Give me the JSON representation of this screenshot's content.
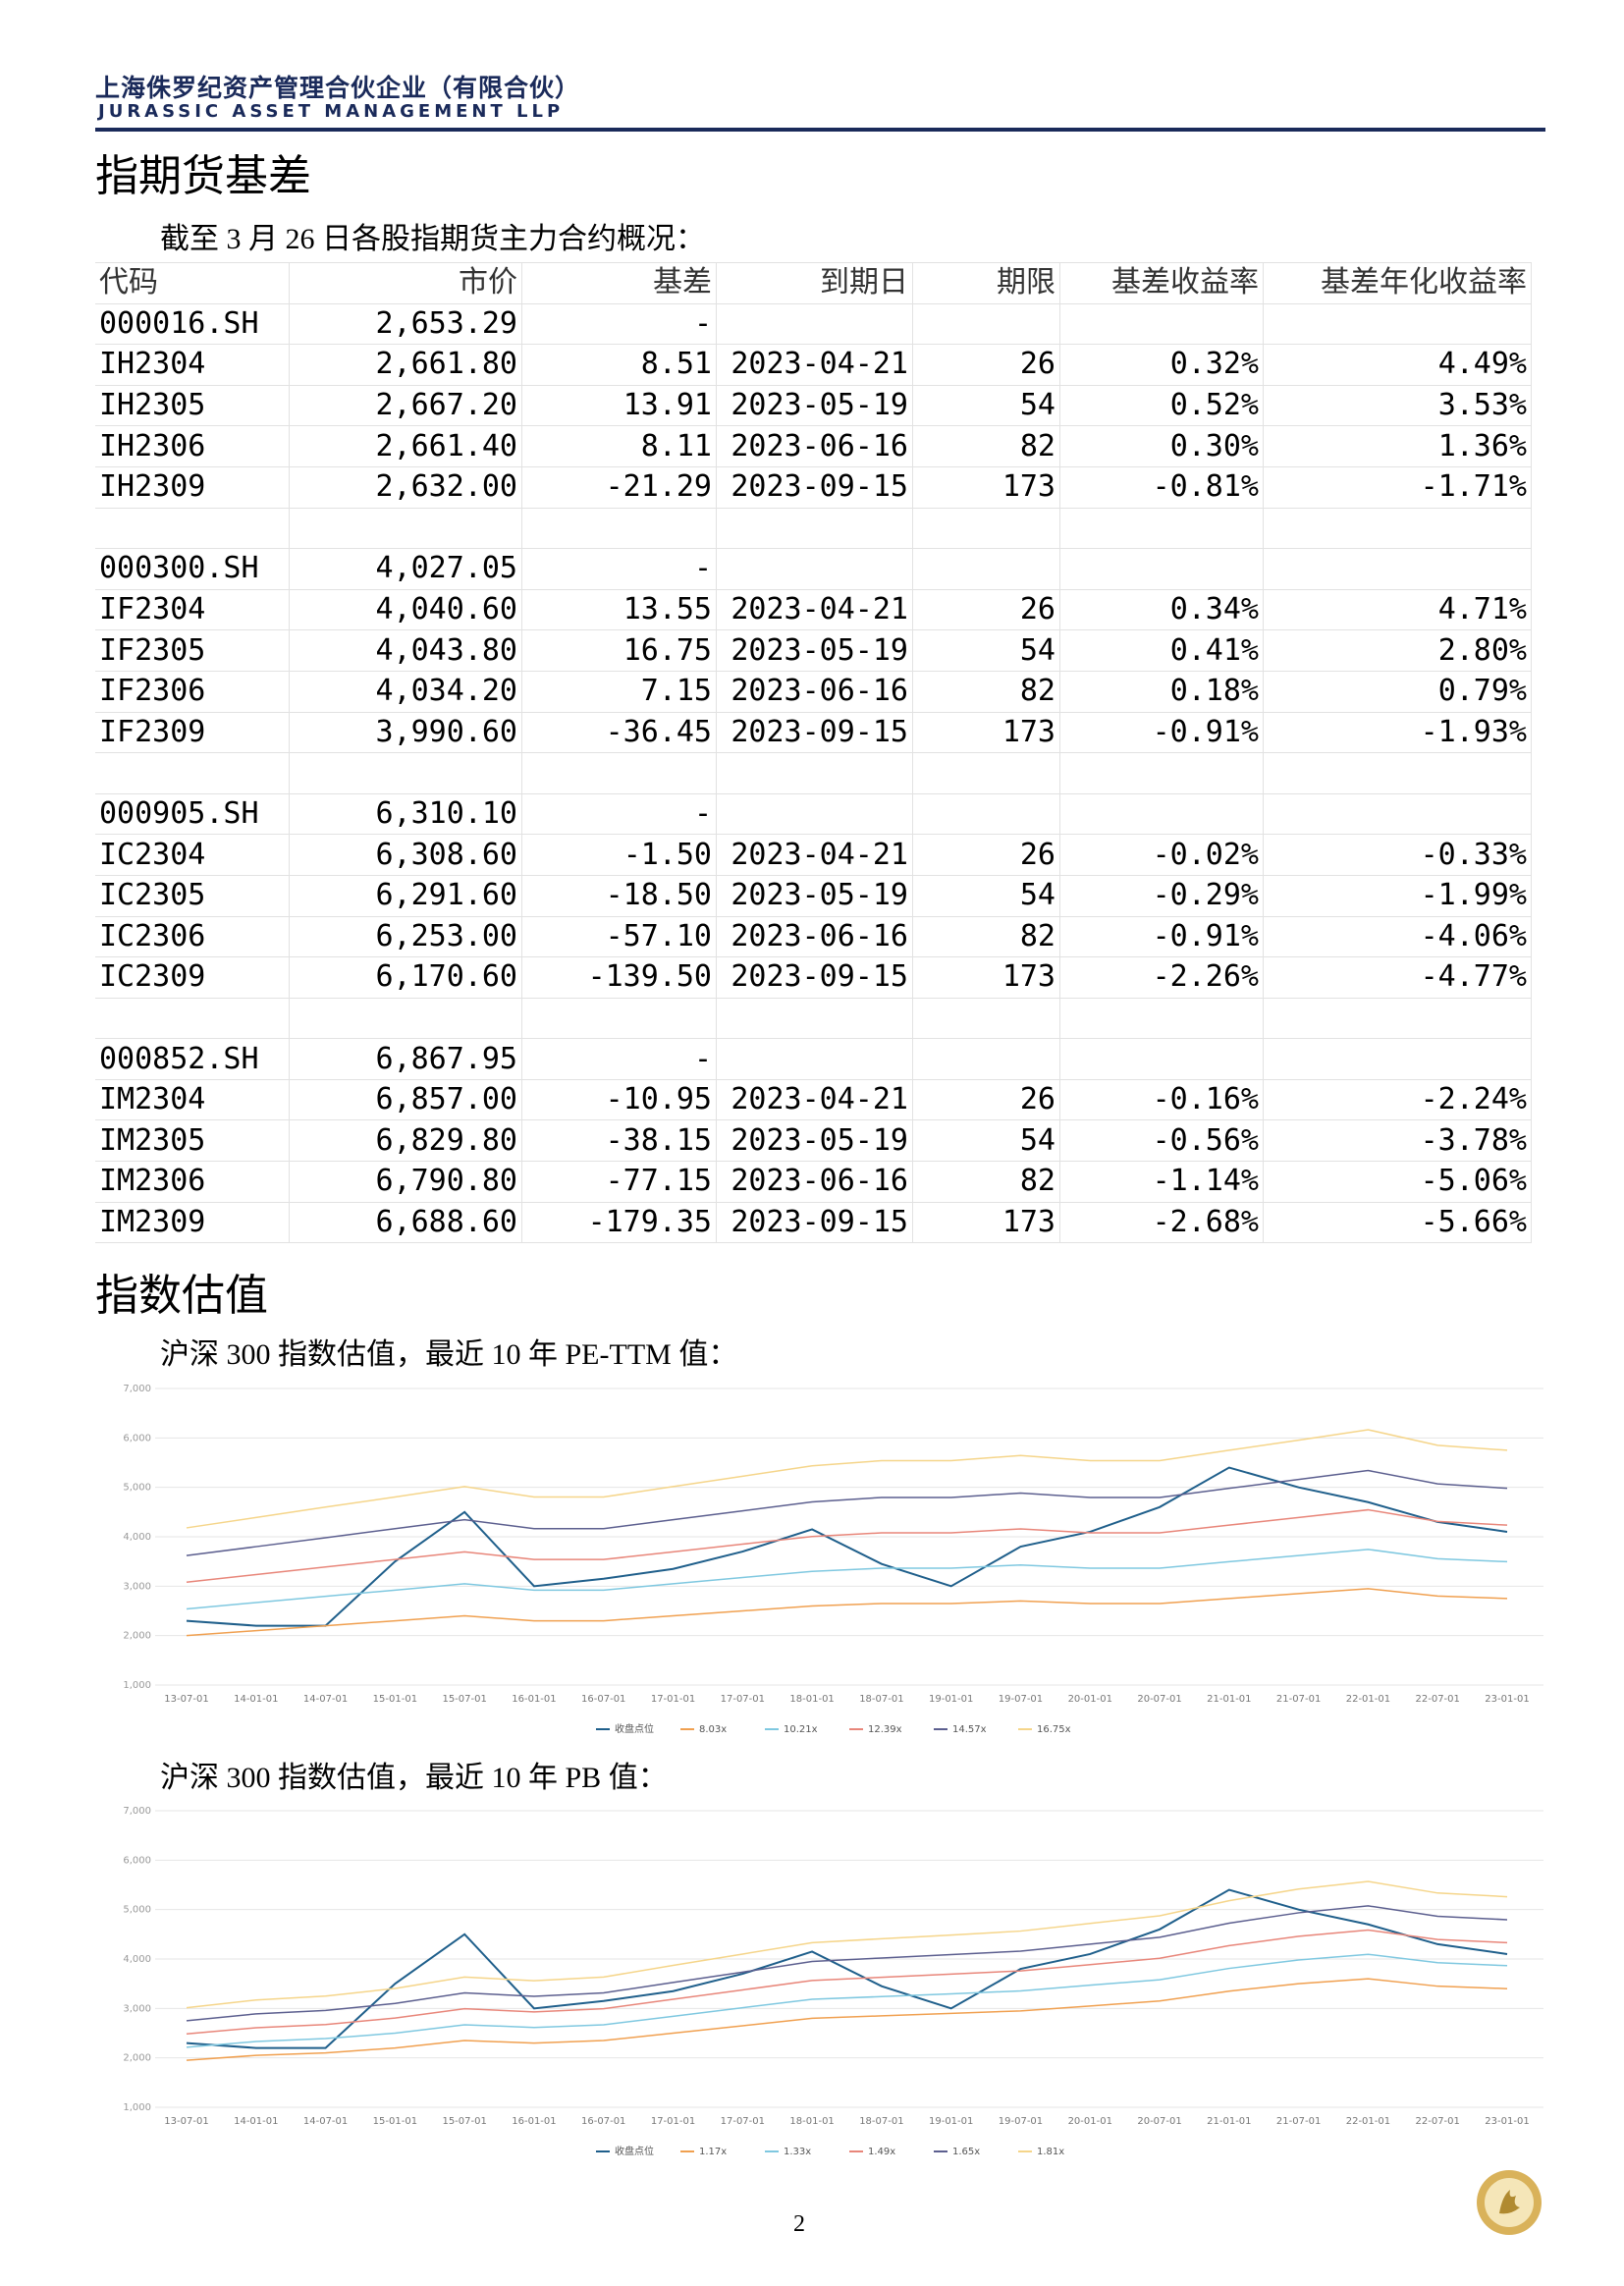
{
  "header": {
    "company": "上海侏罗纪资产管理合伙企业（有限合伙）",
    "company_en": "JURASSIC ASSET MANAGEMENT LLP"
  },
  "section1": {
    "title": "指期货基差",
    "intro": "截至 3 月 26 日各股指期货主力合约概况："
  },
  "table": {
    "header": [
      "代码",
      "市价",
      "基差",
      "到期日",
      "期限",
      "基差收益率",
      "基差年化收益率"
    ],
    "rows": [
      [
        "000016.SH",
        "2,653.29",
        "-",
        null,
        null,
        null,
        null
      ],
      [
        "IH2304",
        "2,661.80",
        "8.51",
        "2023-04-21",
        "26",
        "0.32%",
        "4.49%"
      ],
      [
        "IH2305",
        "2,667.20",
        "13.91",
        "2023-05-19",
        "54",
        "0.52%",
        "3.53%"
      ],
      [
        "IH2306",
        "2,661.40",
        "8.11",
        "2023-06-16",
        "82",
        "0.30%",
        "1.36%"
      ],
      [
        "IH2309",
        "2,632.00",
        "-21.29",
        "2023-09-15",
        "173",
        "-0.81%",
        "-1.71%"
      ],
      [
        null,
        null,
        null,
        null,
        null,
        null,
        null
      ],
      [
        "000300.SH",
        "4,027.05",
        "-",
        null,
        null,
        null,
        null
      ],
      [
        "IF2304",
        "4,040.60",
        "13.55",
        "2023-04-21",
        "26",
        "0.34%",
        "4.71%"
      ],
      [
        "IF2305",
        "4,043.80",
        "16.75",
        "2023-05-19",
        "54",
        "0.41%",
        "2.80%"
      ],
      [
        "IF2306",
        "4,034.20",
        "7.15",
        "2023-06-16",
        "82",
        "0.18%",
        "0.79%"
      ],
      [
        "IF2309",
        "3,990.60",
        "-36.45",
        "2023-09-15",
        "173",
        "-0.91%",
        "-1.93%"
      ],
      [
        null,
        null,
        null,
        null,
        null,
        null,
        null
      ],
      [
        "000905.SH",
        "6,310.10",
        "-",
        null,
        null,
        null,
        null
      ],
      [
        "IC2304",
        "6,308.60",
        "-1.50",
        "2023-04-21",
        "26",
        "-0.02%",
        "-0.33%"
      ],
      [
        "IC2305",
        "6,291.60",
        "-18.50",
        "2023-05-19",
        "54",
        "-0.29%",
        "-1.99%"
      ],
      [
        "IC2306",
        "6,253.00",
        "-57.10",
        "2023-06-16",
        "82",
        "-0.91%",
        "-4.06%"
      ],
      [
        "IC2309",
        "6,170.60",
        "-139.50",
        "2023-09-15",
        "173",
        "-2.26%",
        "-4.77%"
      ],
      [
        null,
        null,
        null,
        null,
        null,
        null,
        null
      ],
      [
        "000852.SH",
        "6,867.95",
        "-",
        null,
        null,
        null,
        null
      ],
      [
        "IM2304",
        "6,857.00",
        "-10.95",
        "2023-04-21",
        "26",
        "-0.16%",
        "-2.24%"
      ],
      [
        "IM2305",
        "6,829.80",
        "-38.15",
        "2023-05-19",
        "54",
        "-0.56%",
        "-3.78%"
      ],
      [
        "IM2306",
        "6,790.80",
        "-77.15",
        "2023-06-16",
        "82",
        "-1.14%",
        "-5.06%"
      ],
      [
        "IM2309",
        "6,688.60",
        "-179.35",
        "2023-09-15",
        "173",
        "-2.68%",
        "-5.66%"
      ]
    ]
  },
  "section2": {
    "title": "指数估值"
  },
  "chart_data": [
    {
      "type": "line",
      "title": "沪深 300 指数估值，最近 10 年 PE-TTM 值：",
      "x": [
        "13-07-01",
        "14-01-01",
        "14-07-01",
        "15-01-01",
        "15-07-01",
        "16-01-01",
        "16-07-01",
        "17-01-01",
        "17-07-01",
        "18-01-01",
        "18-07-01",
        "19-01-01",
        "19-07-01",
        "20-01-01",
        "20-07-01",
        "21-01-01",
        "21-07-01",
        "22-01-01",
        "22-07-01",
        "23-01-01"
      ],
      "ylim": [
        1000,
        7000
      ],
      "yticks": [
        {
          "value": 1000,
          "label": "1,000"
        },
        {
          "value": 2000,
          "label": "2,000"
        },
        {
          "value": 3000,
          "label": "3,000"
        },
        {
          "value": 4000,
          "label": "4,000"
        },
        {
          "value": 5000,
          "label": "5,000"
        },
        {
          "value": 6000,
          "label": "6,000"
        },
        {
          "value": 7000,
          "label": "7,000"
        }
      ],
      "grid": true,
      "legend": "bottom",
      "series": [
        {
          "name": "收盘点位",
          "color": "#1f5f8b",
          "values": [
            2300,
            2200,
            2200,
            3500,
            4500,
            3000,
            3150,
            3350,
            3700,
            4150,
            3450,
            3000,
            3800,
            4100,
            4600,
            5400,
            5000,
            4700,
            4300,
            4100
          ]
        },
        {
          "name": "8.03x",
          "color": "#f0a050",
          "values": [
            2000,
            2100,
            2200,
            2300,
            2400,
            2300,
            2300,
            2400,
            2500,
            2600,
            2650,
            2650,
            2700,
            2650,
            2650,
            2750,
            2850,
            2950,
            2800,
            2750
          ]
        },
        {
          "name": "10.21x",
          "color": "#7fc8e0",
          "values": [
            2540,
            2670,
            2795,
            2920,
            3050,
            2920,
            2920,
            3050,
            3175,
            3300,
            3365,
            3365,
            3430,
            3365,
            3365,
            3495,
            3620,
            3745,
            3555,
            3495
          ]
        },
        {
          "name": "12.39x",
          "color": "#e8867a",
          "values": [
            3080,
            3235,
            3390,
            3540,
            3695,
            3540,
            3540,
            3695,
            3850,
            4005,
            4080,
            4080,
            4160,
            4080,
            4080,
            4235,
            4390,
            4545,
            4310,
            4235
          ]
        },
        {
          "name": "14.57x",
          "color": "#5c5f8f",
          "values": [
            3620,
            3800,
            3980,
            4165,
            4345,
            4165,
            4165,
            4345,
            4525,
            4705,
            4795,
            4795,
            4885,
            4795,
            4795,
            4980,
            5160,
            5340,
            5070,
            4980
          ]
        },
        {
          "name": "16.75x",
          "color": "#f5d58a",
          "values": [
            4180,
            4390,
            4600,
            4805,
            5015,
            4805,
            4805,
            5015,
            5225,
            5435,
            5540,
            5540,
            5645,
            5540,
            5540,
            5750,
            5955,
            6165,
            5850,
            5750
          ]
        }
      ]
    },
    {
      "type": "line",
      "title": "沪深 300 指数估值，最近 10 年 PB 值：",
      "x": [
        "13-07-01",
        "14-01-01",
        "14-07-01",
        "15-01-01",
        "15-07-01",
        "16-01-01",
        "16-07-01",
        "17-01-01",
        "17-07-01",
        "18-01-01",
        "18-07-01",
        "19-01-01",
        "19-07-01",
        "20-01-01",
        "20-07-01",
        "21-01-01",
        "21-07-01",
        "22-01-01",
        "22-07-01",
        "23-01-01"
      ],
      "ylim": [
        1000,
        7000
      ],
      "yticks": [
        {
          "value": 1000,
          "label": "1,000"
        },
        {
          "value": 2000,
          "label": "2,000"
        },
        {
          "value": 3000,
          "label": "3,000"
        },
        {
          "value": 4000,
          "label": "4,000"
        },
        {
          "value": 5000,
          "label": "5,000"
        },
        {
          "value": 6000,
          "label": "6,000"
        },
        {
          "value": 7000,
          "label": "7,000"
        }
      ],
      "grid": true,
      "legend": "bottom",
      "series": [
        {
          "name": "收盘点位",
          "color": "#1f5f8b",
          "values": [
            2300,
            2200,
            2200,
            3500,
            4500,
            3000,
            3150,
            3350,
            3700,
            4150,
            3450,
            3000,
            3800,
            4100,
            4600,
            5400,
            5000,
            4700,
            4300,
            4100
          ]
        },
        {
          "name": "1.17x",
          "color": "#f0a050",
          "values": [
            1950,
            2050,
            2100,
            2200,
            2350,
            2300,
            2350,
            2500,
            2650,
            2800,
            2850,
            2900,
            2950,
            3050,
            3150,
            3350,
            3500,
            3600,
            3450,
            3400
          ]
        },
        {
          "name": "1.33x",
          "color": "#7fc8e0",
          "values": [
            2215,
            2330,
            2390,
            2500,
            2670,
            2615,
            2670,
            2840,
            3015,
            3185,
            3240,
            3295,
            3355,
            3470,
            3580,
            3810,
            3980,
            4095,
            3925,
            3865
          ]
        },
        {
          "name": "1.49x",
          "color": "#e8867a",
          "values": [
            2485,
            2610,
            2675,
            2805,
            2995,
            2930,
            2995,
            3185,
            3375,
            3565,
            3630,
            3695,
            3760,
            3885,
            4015,
            4270,
            4460,
            4585,
            4395,
            4330
          ]
        },
        {
          "name": "1.65x",
          "color": "#5c5f8f",
          "values": [
            2750,
            2890,
            2960,
            3100,
            3315,
            3245,
            3315,
            3525,
            3735,
            3950,
            4020,
            4090,
            4160,
            4300,
            4440,
            4725,
            4935,
            5075,
            4865,
            4795
          ]
        },
        {
          "name": "1.81x",
          "color": "#f5d58a",
          "values": [
            3015,
            3170,
            3250,
            3405,
            3635,
            3560,
            3635,
            3870,
            4100,
            4330,
            4410,
            4485,
            4565,
            4720,
            4875,
            5180,
            5415,
            5570,
            5335,
            5260
          ]
        }
      ]
    }
  ],
  "footer": {
    "page": "2"
  }
}
